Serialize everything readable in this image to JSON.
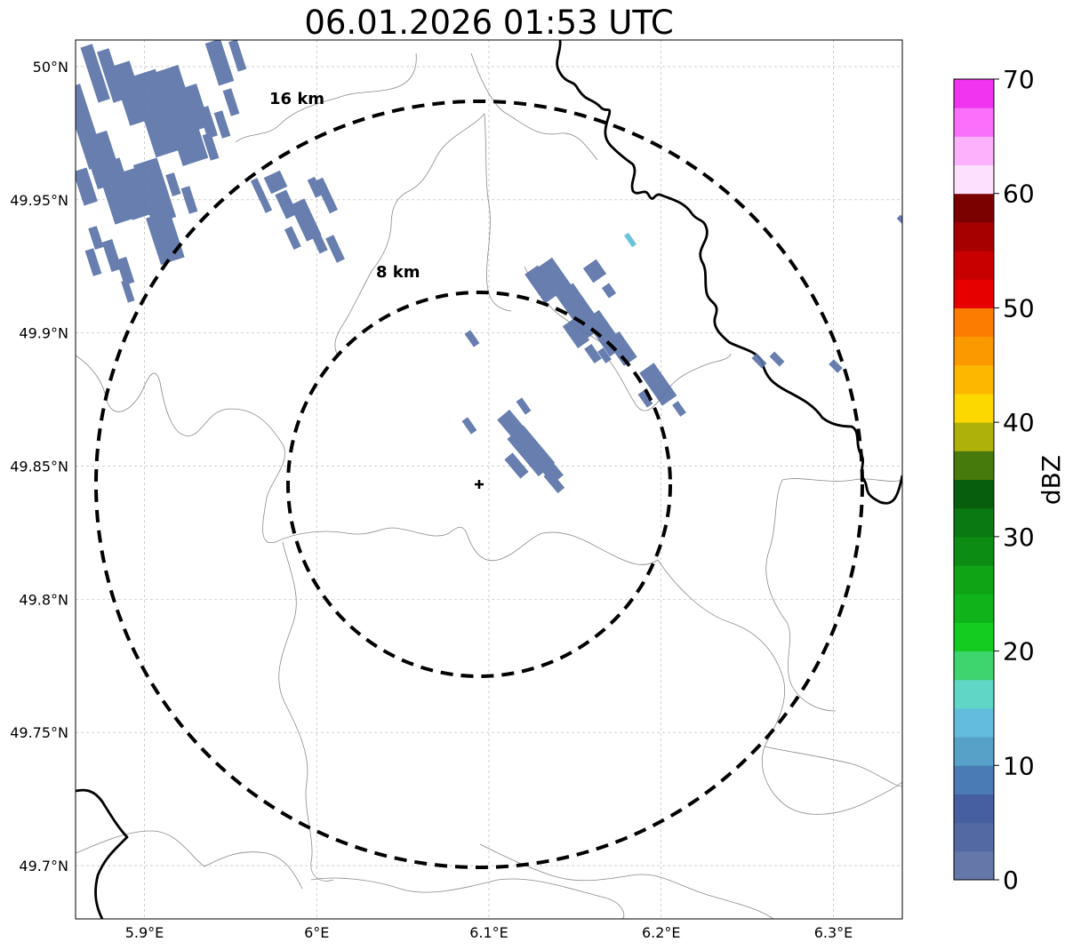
{
  "title": "06.01.2026 01:53 UTC",
  "map": {
    "extent": {
      "lon_min": 5.86,
      "lon_max": 6.34,
      "lat_min": 49.68,
      "lat_max": 50.01
    },
    "lon_ticks": [
      {
        "value": 5.9,
        "label": "5.9°E"
      },
      {
        "value": 6.0,
        "label": "6°E"
      },
      {
        "value": 6.1,
        "label": "6.1°E"
      },
      {
        "value": 6.2,
        "label": "6.2°E"
      },
      {
        "value": 6.3,
        "label": "6.3°E"
      }
    ],
    "lat_ticks": [
      {
        "value": 50.0,
        "label": "50°N"
      },
      {
        "value": 49.95,
        "label": "49.95°N"
      },
      {
        "value": 49.9,
        "label": "49.9°N"
      },
      {
        "value": 49.85,
        "label": "49.85°N"
      },
      {
        "value": 49.8,
        "label": "49.8°N"
      },
      {
        "value": 49.75,
        "label": "49.75°N"
      },
      {
        "value": 49.7,
        "label": "49.7°N"
      }
    ],
    "radar_site": {
      "lon": 6.095,
      "lat": 49.843
    },
    "range_rings": [
      {
        "radius_km": 8,
        "label": "8 km"
      },
      {
        "radius_km": 16,
        "label": "16 km"
      }
    ],
    "echo_color": "#5a73a8"
  },
  "colorbar": {
    "label": "dBZ",
    "min": 0,
    "max": 70,
    "ticks": [
      "0",
      "10",
      "20",
      "30",
      "40",
      "50",
      "60",
      "70"
    ],
    "colors": [
      "#6377a8",
      "#5269a3",
      "#455fa1",
      "#4a7bb4",
      "#57a0c8",
      "#63bcdc",
      "#5fd6c6",
      "#3ed46e",
      "#13cc1f",
      "#10b41a",
      "#0ea416",
      "#0d8c13",
      "#0b7911",
      "#075e0c",
      "#467a0c",
      "#aeb10a",
      "#fcd800",
      "#fcb700",
      "#fb9a00",
      "#fb7c00",
      "#e60000",
      "#c80000",
      "#a60000",
      "#7b0000",
      "#fde0fd",
      "#fbb1fb",
      "#fa70fa",
      "#f034f0"
    ]
  }
}
